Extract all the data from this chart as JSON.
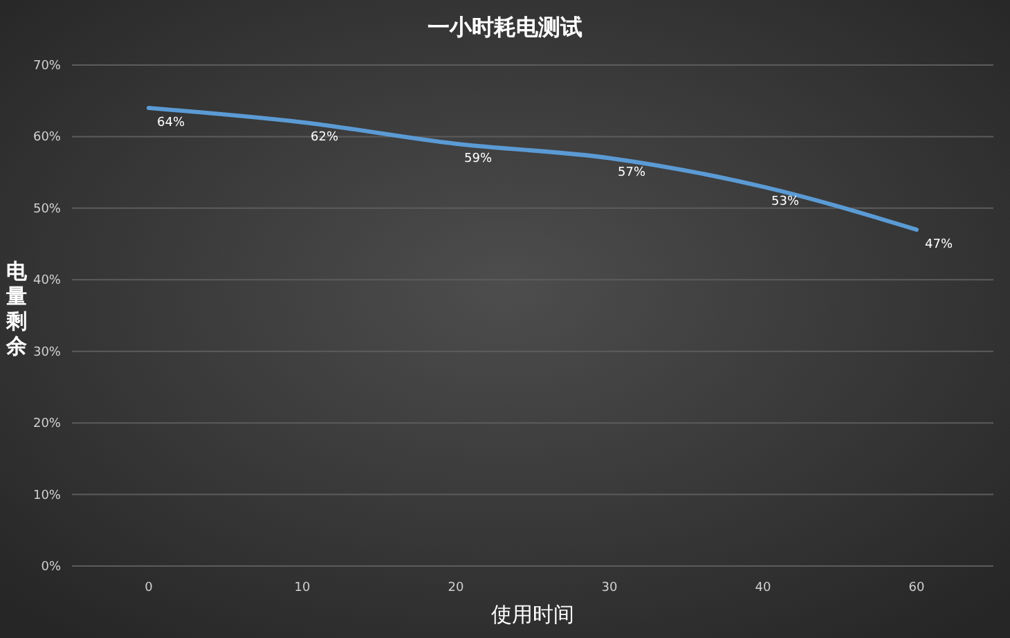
{
  "chart_data": {
    "type": "line",
    "title": "一小时耗电测试",
    "xlabel": "使用时间",
    "ylabel": "电量剩余",
    "categories": [
      "0",
      "10",
      "20",
      "30",
      "40",
      "60"
    ],
    "series": [
      {
        "color": "#5b9bd5",
        "values": [
          64,
          62,
          59,
          57,
          53,
          47
        ],
        "value_labels": [
          "64%",
          "62%",
          "59%",
          "57%",
          "53%",
          "47%"
        ]
      }
    ],
    "ylim": [
      0,
      70
    ],
    "yticks": [
      {
        "value": 0,
        "label": "0%"
      },
      {
        "value": 10,
        "label": "10%"
      },
      {
        "value": 20,
        "label": "20%"
      },
      {
        "value": 30,
        "label": "30%"
      },
      {
        "value": 40,
        "label": "40%"
      },
      {
        "value": 50,
        "label": "50%"
      },
      {
        "value": 60,
        "label": "60%"
      },
      {
        "value": 70,
        "label": "70%"
      }
    ],
    "grid": "y",
    "marker": "none",
    "line_style": "solid"
  }
}
